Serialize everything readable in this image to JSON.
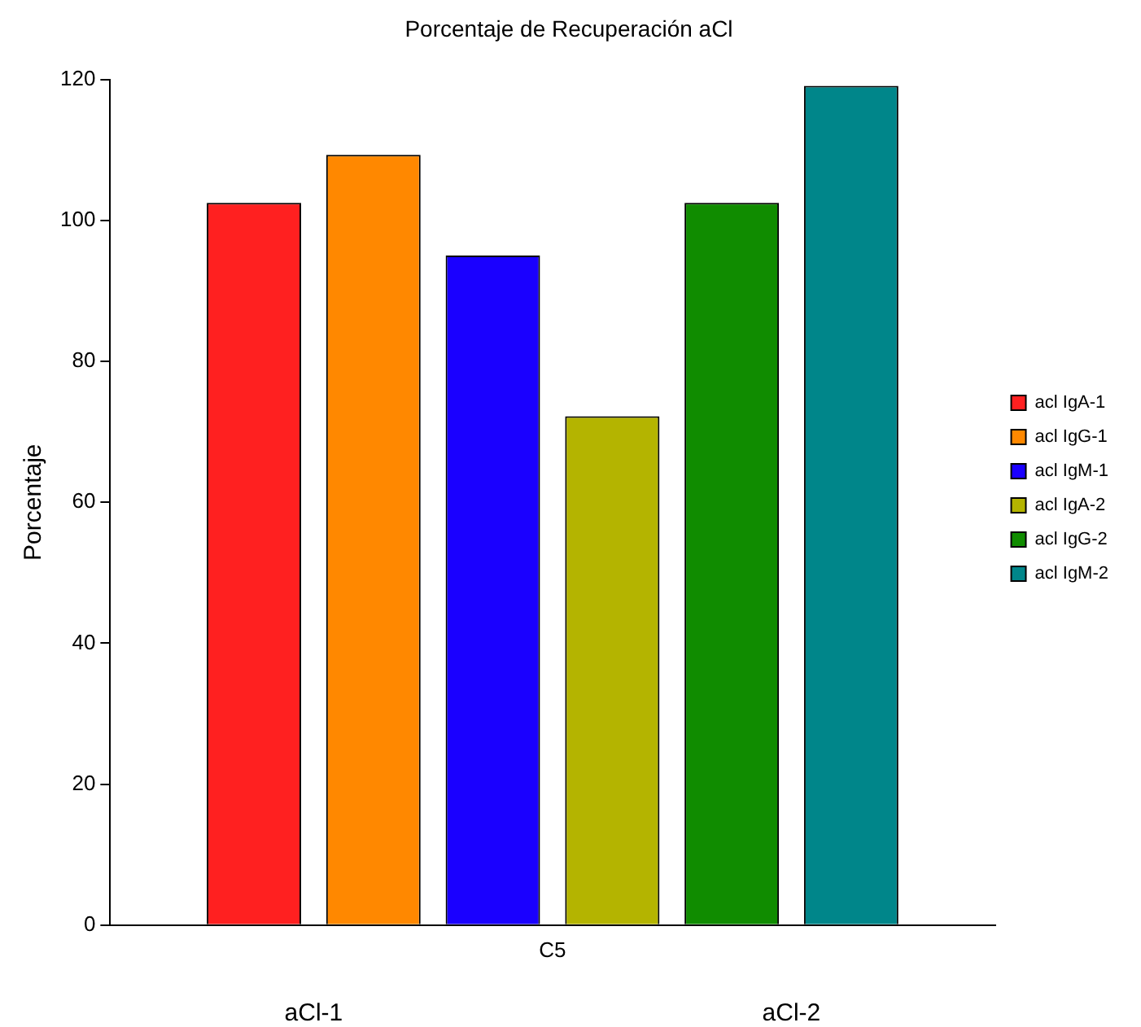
{
  "chart_data": {
    "type": "bar",
    "title": "Porcentaje de Recuperación aCl",
    "ylabel": "Porcentaje",
    "categories": [
      "C5"
    ],
    "series": [
      {
        "name": "acl IgA-1",
        "color": "#ff2020",
        "values": [
          102.5
        ]
      },
      {
        "name": "acl IgG-1",
        "color": "#ff8800",
        "values": [
          109.3
        ]
      },
      {
        "name": "acl IgM-1",
        "color": "#1a00ff",
        "values": [
          95.0
        ]
      },
      {
        "name": "acl IgA-2",
        "color": "#b4b400",
        "values": [
          72.2
        ]
      },
      {
        "name": "acl IgG-2",
        "color": "#108c00",
        "values": [
          102.5
        ]
      },
      {
        "name": "acl IgM-2",
        "color": "#00868a",
        "values": [
          119.1
        ]
      }
    ],
    "ylim": [
      0,
      120
    ],
    "yticks": [
      0,
      20,
      40,
      60,
      80,
      100,
      120
    ],
    "grid": false,
    "legend": "right",
    "annotations": [
      "aCl-1",
      "aCl-2"
    ]
  }
}
